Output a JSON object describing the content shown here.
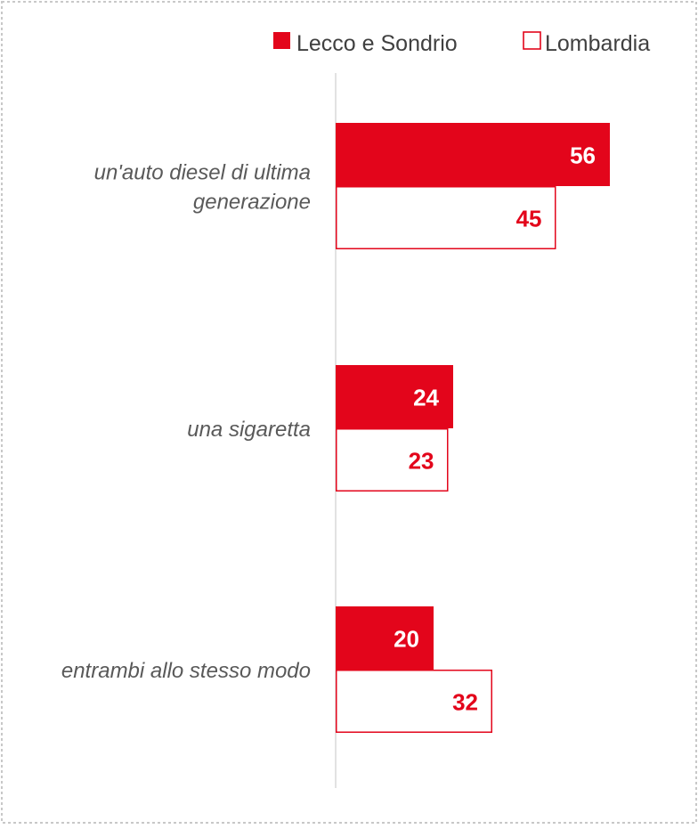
{
  "colors": {
    "primary": "#E3051B",
    "axis": "#D9D9D9",
    "frame": "#C8C8C8",
    "category_text": "#595959",
    "legend_text": "#404040",
    "inner_label": "#FFFFFF"
  },
  "legend": [
    {
      "label": "Lecco e Sondrio",
      "style": "filled"
    },
    {
      "label": "Lombardia",
      "style": "outline"
    }
  ],
  "chart_data": {
    "type": "bar",
    "orientation": "horizontal",
    "categories": [
      "un'auto diesel di ultima generazione",
      "una sigaretta",
      "entrambi allo stesso modo"
    ],
    "category_label_lines": [
      [
        "un'auto diesel di ultima",
        "generazione"
      ],
      [
        "una sigaretta"
      ],
      [
        "entrambi allo stesso modo"
      ]
    ],
    "series": [
      {
        "name": "Lecco e Sondrio",
        "values": [
          56,
          24,
          20
        ],
        "style": "filled"
      },
      {
        "name": "Lombardia",
        "values": [
          45,
          23,
          32
        ],
        "style": "outline"
      }
    ],
    "data_labels": true,
    "legend_position": "top-right",
    "grid": false
  }
}
